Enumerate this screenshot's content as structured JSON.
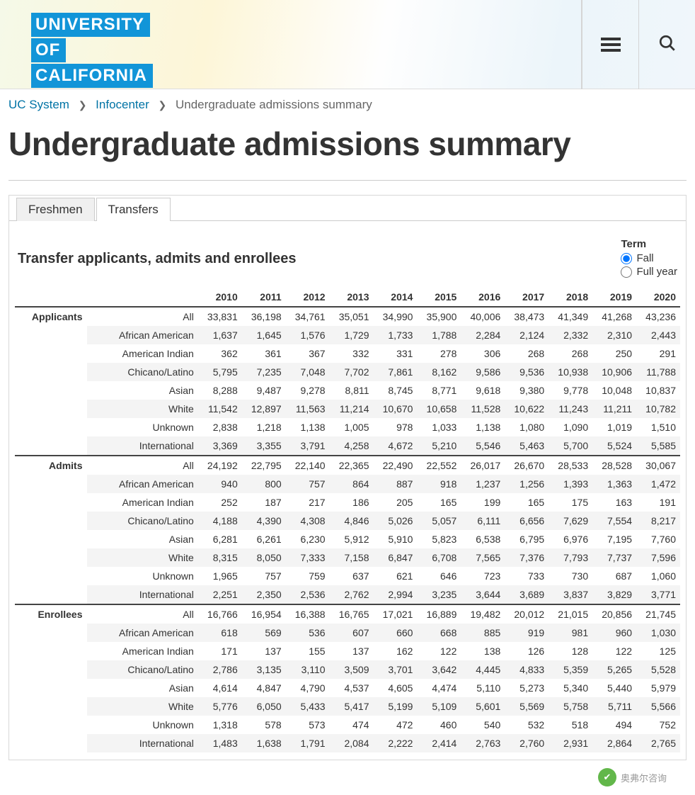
{
  "logo": {
    "l1": "UNIVERSITY",
    "l2": "OF",
    "l3": "CALIFORNIA"
  },
  "breadcrumb": {
    "items": [
      {
        "label": "UC System",
        "link": true
      },
      {
        "label": "Infocenter",
        "link": true
      },
      {
        "label": "Undergraduate admissions summary",
        "link": false
      }
    ]
  },
  "page_title": "Undergraduate admissions summary",
  "tabs": {
    "t0": "Freshmen",
    "t1": "Transfers",
    "active": 1
  },
  "sub_heading": "Transfer applicants, admits and enrollees",
  "term": {
    "label": "Term",
    "opt_fall": "Fall",
    "opt_full": "Full year",
    "selected": "fall"
  },
  "years": [
    "2010",
    "2011",
    "2012",
    "2013",
    "2014",
    "2015",
    "2016",
    "2017",
    "2018",
    "2019",
    "2020"
  ],
  "groups": [
    "Applicants",
    "Admits",
    "Enrollees"
  ],
  "categories": [
    "All",
    "African American",
    "American Indian",
    "Chicano/Latino",
    "Asian",
    "White",
    "Unknown",
    "International"
  ],
  "table": {
    "Applicants": {
      "All": [
        "33,831",
        "36,198",
        "34,761",
        "35,051",
        "34,990",
        "35,900",
        "40,006",
        "38,473",
        "41,349",
        "41,268",
        "43,236"
      ],
      "African American": [
        "1,637",
        "1,645",
        "1,576",
        "1,729",
        "1,733",
        "1,788",
        "2,284",
        "2,124",
        "2,332",
        "2,310",
        "2,443"
      ],
      "American Indian": [
        "362",
        "361",
        "367",
        "332",
        "331",
        "278",
        "306",
        "268",
        "268",
        "250",
        "291"
      ],
      "Chicano/Latino": [
        "5,795",
        "7,235",
        "7,048",
        "7,702",
        "7,861",
        "8,162",
        "9,586",
        "9,536",
        "10,938",
        "10,906",
        "11,788"
      ],
      "Asian": [
        "8,288",
        "9,487",
        "9,278",
        "8,811",
        "8,745",
        "8,771",
        "9,618",
        "9,380",
        "9,778",
        "10,048",
        "10,837"
      ],
      "White": [
        "11,542",
        "12,897",
        "11,563",
        "11,214",
        "10,670",
        "10,658",
        "11,528",
        "10,622",
        "11,243",
        "11,211",
        "10,782"
      ],
      "Unknown": [
        "2,838",
        "1,218",
        "1,138",
        "1,005",
        "978",
        "1,033",
        "1,138",
        "1,080",
        "1,090",
        "1,019",
        "1,510"
      ],
      "International": [
        "3,369",
        "3,355",
        "3,791",
        "4,258",
        "4,672",
        "5,210",
        "5,546",
        "5,463",
        "5,700",
        "5,524",
        "5,585"
      ]
    },
    "Admits": {
      "All": [
        "24,192",
        "22,795",
        "22,140",
        "22,365",
        "22,490",
        "22,552",
        "26,017",
        "26,670",
        "28,533",
        "28,528",
        "30,067"
      ],
      "African American": [
        "940",
        "800",
        "757",
        "864",
        "887",
        "918",
        "1,237",
        "1,256",
        "1,393",
        "1,363",
        "1,472"
      ],
      "American Indian": [
        "252",
        "187",
        "217",
        "186",
        "205",
        "165",
        "199",
        "165",
        "175",
        "163",
        "191"
      ],
      "Chicano/Latino": [
        "4,188",
        "4,390",
        "4,308",
        "4,846",
        "5,026",
        "5,057",
        "6,111",
        "6,656",
        "7,629",
        "7,554",
        "8,217"
      ],
      "Asian": [
        "6,281",
        "6,261",
        "6,230",
        "5,912",
        "5,910",
        "5,823",
        "6,538",
        "6,795",
        "6,976",
        "7,195",
        "7,760"
      ],
      "White": [
        "8,315",
        "8,050",
        "7,333",
        "7,158",
        "6,847",
        "6,708",
        "7,565",
        "7,376",
        "7,793",
        "7,737",
        "7,596"
      ],
      "Unknown": [
        "1,965",
        "757",
        "759",
        "637",
        "621",
        "646",
        "723",
        "733",
        "730",
        "687",
        "1,060"
      ],
      "International": [
        "2,251",
        "2,350",
        "2,536",
        "2,762",
        "2,994",
        "3,235",
        "3,644",
        "3,689",
        "3,837",
        "3,829",
        "3,771"
      ]
    },
    "Enrollees": {
      "All": [
        "16,766",
        "16,954",
        "16,388",
        "16,765",
        "17,021",
        "16,889",
        "19,482",
        "20,012",
        "21,015",
        "20,856",
        "21,745"
      ],
      "African American": [
        "618",
        "569",
        "536",
        "607",
        "660",
        "668",
        "885",
        "919",
        "981",
        "960",
        "1,030"
      ],
      "American Indian": [
        "171",
        "137",
        "155",
        "137",
        "162",
        "122",
        "138",
        "126",
        "128",
        "122",
        "125"
      ],
      "Chicano/Latino": [
        "2,786",
        "3,135",
        "3,110",
        "3,509",
        "3,701",
        "3,642",
        "4,445",
        "4,833",
        "5,359",
        "5,265",
        "5,528"
      ],
      "Asian": [
        "4,614",
        "4,847",
        "4,790",
        "4,537",
        "4,605",
        "4,474",
        "5,110",
        "5,273",
        "5,340",
        "5,440",
        "5,979"
      ],
      "White": [
        "5,776",
        "6,050",
        "5,433",
        "5,417",
        "5,199",
        "5,109",
        "5,601",
        "5,569",
        "5,758",
        "5,711",
        "5,566"
      ],
      "Unknown": [
        "1,318",
        "578",
        "573",
        "474",
        "472",
        "460",
        "540",
        "532",
        "518",
        "494",
        "752"
      ],
      "International": [
        "1,483",
        "1,638",
        "1,791",
        "2,084",
        "2,222",
        "2,414",
        "2,763",
        "2,760",
        "2,931",
        "2,864",
        "2,765"
      ]
    }
  },
  "attribution": {
    "text": "奥弗尔咨询"
  },
  "colors": {
    "brand_blue": "#1295d8",
    "link": "#0073a5",
    "text": "#333333",
    "muted": "#666666",
    "stripe": "#f4f4f4"
  }
}
